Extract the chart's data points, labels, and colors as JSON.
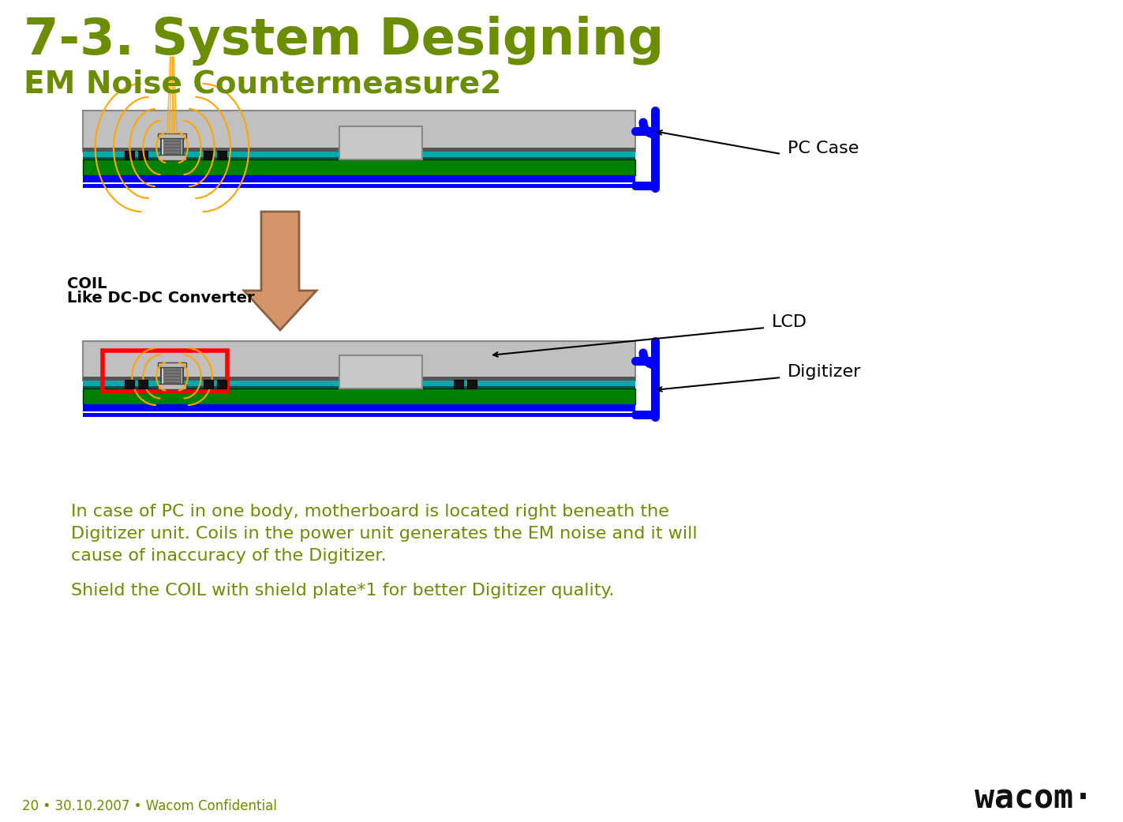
{
  "title": "7-3. System Designing",
  "subtitle": "EM Noise Countermeasure2",
  "title_color": "#6b8e00",
  "subtitle_color": "#6b8e00",
  "background_color": "#ffffff",
  "footer_text": "20 • 30.10.2007 • Wacom Confidential",
  "footer_color": "#6b8e00",
  "body_text_line1": "In case of PC in one body, motherboard is located right beneath the",
  "body_text_line2": "Digitizer unit. Coils in the power unit generates the EM noise and it will",
  "body_text_line3": "cause of inaccuracy of the Digitizer.",
  "body_text_line4": "Shield the COIL with shield plate*1 for better Digitizer quality.",
  "body_text_color": "#6b8e00",
  "label_pc_case": "PC Case",
  "label_lcd": "LCD",
  "label_digitizer": "Digitizer",
  "label_coil_line1": "COIL",
  "label_coil_line2": "Like DC-DC Converter",
  "green_color": "#008000",
  "blue_color": "#0000ff",
  "orange_color": "#ffa500",
  "red_color": "#ff0000",
  "arrow_fill_color": "#d4956a",
  "arrow_edge_color": "#8b6040"
}
